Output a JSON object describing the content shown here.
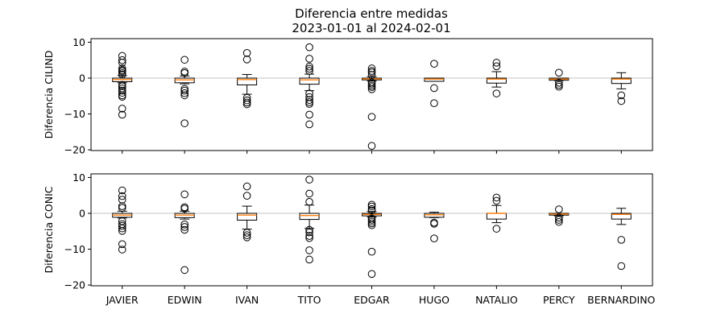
{
  "chart_data": {
    "type": "box",
    "title": "Diferencia entre medidas",
    "subtitle": "2023-01-01 al 2024-02-01",
    "categories": [
      "JAVIER",
      "EDWIN",
      "IVAN",
      "TITO",
      "EDGAR",
      "HUGO",
      "NATALIO",
      "PERCY",
      "BERNARDINO"
    ],
    "colors": {
      "median": "#ff7f0e",
      "box": "#000000",
      "reference_line": "#b0b0b0"
    },
    "grid": false,
    "reference_line_y": 0,
    "subplots": [
      {
        "ylabel": "Diferencia CILIND",
        "ylim": [
          -20.2,
          11
        ],
        "yticks": [
          10,
          0,
          -10,
          -20
        ],
        "ytick_labels": [
          "10",
          "0",
          "−10",
          "−20"
        ],
        "boxes": [
          {
            "category": "JAVIER",
            "whisker_low": -1.3,
            "q1": -1.0,
            "median": -0.4,
            "q3": 0.0,
            "whisker_high": 0.7,
            "outliers": [
              6.2,
              5.0,
              4.3,
              2.7,
              2.2,
              1.9,
              1.4,
              1.0,
              -1.9,
              -2.3,
              -2.9,
              -3.5,
              -4.1,
              -4.8,
              -5.2,
              -8.5,
              -10.2
            ]
          },
          {
            "category": "EDWIN",
            "whisker_low": -1.6,
            "q1": -1.3,
            "median": -0.5,
            "q3": 0.0,
            "whisker_high": 0.6,
            "outliers": [
              5.1,
              1.8,
              1.4,
              -3.0,
              -3.5,
              -4.2,
              -4.8,
              -12.6
            ]
          },
          {
            "category": "IVAN",
            "whisker_low": -4.5,
            "q1": -1.9,
            "median": -0.4,
            "q3": 0.0,
            "whisker_high": 1.0,
            "outliers": [
              7.0,
              5.2,
              -5.5,
              -6.2,
              -6.8,
              -7.3
            ]
          },
          {
            "category": "TITO",
            "whisker_low": -3.5,
            "q1": -1.7,
            "median": -0.5,
            "q3": 0.0,
            "whisker_high": 1.1,
            "outliers": [
              8.6,
              5.4,
              3.2,
              2.6,
              2.0,
              -4.3,
              -5.3,
              -6.1,
              -6.7,
              -7.2,
              -10.2,
              -12.9
            ]
          },
          {
            "category": "EDGAR",
            "whisker_low": -0.8,
            "q1": -0.5,
            "median": -0.2,
            "q3": 0.0,
            "whisker_high": 0.4,
            "outliers": [
              2.7,
              2.0,
              1.6,
              0.9,
              -1.2,
              -1.6,
              -2.1,
              -2.5,
              -3.1,
              -10.8,
              -18.9
            ]
          },
          {
            "category": "HUGO",
            "whisker_low": -0.9,
            "q1": -0.9,
            "median": -0.3,
            "q3": 0.0,
            "whisker_high": 0.0,
            "outliers": [
              4.0,
              -2.8,
              -7.0
            ]
          },
          {
            "category": "NATALIO",
            "whisker_low": -2.5,
            "q1": -1.4,
            "median": -0.3,
            "q3": 0.0,
            "whisker_high": 1.8,
            "outliers": [
              4.3,
              3.3,
              -4.3
            ]
          },
          {
            "category": "PERCY",
            "whisker_low": -0.7,
            "q1": -0.6,
            "median": -0.3,
            "q3": 0.0,
            "whisker_high": 0.0,
            "outliers": [
              1.5,
              -1.3,
              -1.9,
              -2.4
            ]
          },
          {
            "category": "BERNARDINO",
            "whisker_low": -3.0,
            "q1": -1.5,
            "median": -0.3,
            "q3": 0.0,
            "whisker_high": 1.5,
            "outliers": [
              -4.8,
              -6.4
            ]
          }
        ]
      },
      {
        "ylabel": "Diferencia CONIC",
        "ylim": [
          -20.2,
          11
        ],
        "yticks": [
          10,
          0,
          -10,
          -20
        ],
        "ytick_labels": [
          "10",
          "0",
          "−10",
          "−20"
        ],
        "xtick_labels": [
          "JAVIER",
          "EDWIN",
          "IVAN",
          "TITO",
          "EDGAR",
          "HUGO",
          "NATALIO",
          "PERCY",
          "BERNARDINO"
        ],
        "boxes": [
          {
            "category": "JAVIER",
            "whisker_low": -1.3,
            "q1": -1.1,
            "median": -0.5,
            "q3": 0.0,
            "whisker_high": 0.6,
            "outliers": [
              6.4,
              4.8,
              3.8,
              2.0,
              1.5,
              -2.2,
              -3.0,
              -3.5,
              -4.2,
              -4.9,
              -8.6,
              -10.1
            ]
          },
          {
            "category": "EDWIN",
            "whisker_low": -1.6,
            "q1": -1.2,
            "median": -0.5,
            "q3": 0.0,
            "whisker_high": 0.6,
            "outliers": [
              5.3,
              1.7,
              1.3,
              -3.1,
              -3.8,
              -4.6,
              -15.8
            ]
          },
          {
            "category": "IVAN",
            "whisker_low": -4.4,
            "q1": -1.9,
            "median": -0.5,
            "q3": 0.0,
            "whisker_high": 2.0,
            "outliers": [
              7.5,
              4.9,
              -5.4,
              -6.1,
              -6.7
            ]
          },
          {
            "category": "TITO",
            "whisker_low": -4.2,
            "q1": -1.7,
            "median": -0.6,
            "q3": 0.0,
            "whisker_high": 2.3,
            "outliers": [
              9.4,
              5.5,
              3.2,
              -4.6,
              -5.3,
              -6.3,
              -6.9,
              -10.3,
              -12.9
            ]
          },
          {
            "category": "EDGAR",
            "whisker_low": -1.0,
            "q1": -0.7,
            "median": -0.3,
            "q3": 0.0,
            "whisker_high": 0.5,
            "outliers": [
              2.4,
              1.9,
              1.2,
              0.8,
              -1.4,
              -1.8,
              -2.3,
              -2.8,
              -3.3,
              -10.7,
              -16.9
            ]
          },
          {
            "category": "HUGO",
            "whisker_low": -1.2,
            "q1": -1.1,
            "median": -0.4,
            "q3": 0.0,
            "whisker_high": 0.3,
            "outliers": [
              -2.6,
              -2.9,
              -7.0
            ]
          },
          {
            "category": "NATALIO",
            "whisker_low": -2.6,
            "q1": -1.6,
            "median": 0.0,
            "q3": 0.0,
            "whisker_high": 2.2,
            "outliers": [
              4.4,
              3.5,
              -4.3
            ]
          },
          {
            "category": "PERCY",
            "whisker_low": -0.7,
            "q1": -0.5,
            "median": -0.2,
            "q3": 0.0,
            "whisker_high": 0.0,
            "outliers": [
              1.1,
              -1.2,
              -1.8,
              -2.4
            ]
          },
          {
            "category": "BERNARDINO",
            "whisker_low": -3.1,
            "q1": -1.6,
            "median": -0.3,
            "q3": 0.0,
            "whisker_high": 1.4,
            "outliers": [
              -7.4,
              -14.7
            ]
          }
        ]
      }
    ]
  }
}
